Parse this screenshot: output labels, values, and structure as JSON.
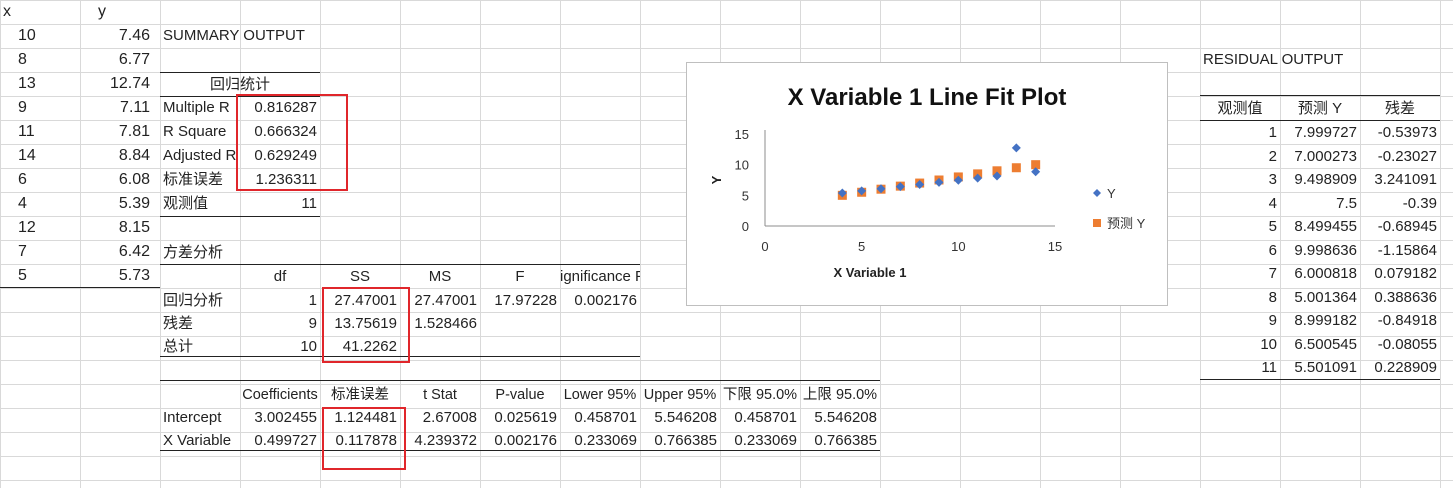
{
  "xy": {
    "x_header": "x",
    "y_header": "y",
    "rows": [
      [
        "10",
        "7.46"
      ],
      [
        "8",
        "6.77"
      ],
      [
        "13",
        "12.74"
      ],
      [
        "9",
        "7.11"
      ],
      [
        "11",
        "7.81"
      ],
      [
        "14",
        "8.84"
      ],
      [
        "6",
        "6.08"
      ],
      [
        "4",
        "5.39"
      ],
      [
        "12",
        "8.15"
      ],
      [
        "7",
        "6.42"
      ],
      [
        "5",
        "5.73"
      ]
    ]
  },
  "summary": {
    "title": "SUMMARY OUTPUT",
    "regstat_header": "回归统计",
    "stats": [
      [
        "Multiple R",
        "0.816287"
      ],
      [
        "R Square",
        "0.666324"
      ],
      [
        "Adjusted R",
        "0.629249"
      ],
      [
        "标准误差",
        "1.236311"
      ],
      [
        "观测值",
        "11"
      ]
    ]
  },
  "anova": {
    "title": "方差分析",
    "headers": [
      "df",
      "SS",
      "MS",
      "F",
      "Significance F"
    ],
    "rows": [
      [
        "回归分析",
        "1",
        "27.47001",
        "27.47001",
        "17.97228",
        "0.002176"
      ],
      [
        "残差",
        "9",
        "13.75619",
        "1.528466",
        "",
        ""
      ],
      [
        "总计",
        "10",
        "41.2262",
        "",
        "",
        ""
      ]
    ]
  },
  "coef": {
    "headers": [
      "Coefficients",
      "标准误差",
      "t Stat",
      "P-value",
      "Lower 95%",
      "Upper 95%",
      "下限 95.0%",
      "上限 95.0%"
    ],
    "rows": [
      [
        "Intercept",
        "3.002455",
        "1.124481",
        "2.67008",
        "0.025619",
        "0.458701",
        "5.546208",
        "0.458701",
        "5.546208"
      ],
      [
        "X Variable",
        "0.499727",
        "0.117878",
        "4.239372",
        "0.002176",
        "0.233069",
        "0.766385",
        "0.233069",
        "0.766385"
      ]
    ]
  },
  "residual": {
    "title": "RESIDUAL OUTPUT",
    "headers": [
      "观测值",
      "预测 Y",
      "残差"
    ],
    "rows": [
      [
        "1",
        "7.999727",
        "-0.53973"
      ],
      [
        "2",
        "7.000273",
        "-0.23027"
      ],
      [
        "3",
        "9.498909",
        "3.241091"
      ],
      [
        "4",
        "7.5",
        "-0.39"
      ],
      [
        "5",
        "8.499455",
        "-0.68945"
      ],
      [
        "6",
        "9.998636",
        "-1.15864"
      ],
      [
        "7",
        "6.000818",
        "0.079182"
      ],
      [
        "8",
        "5.001364",
        "0.388636"
      ],
      [
        "9",
        "8.999182",
        "-0.84918"
      ],
      [
        "10",
        "6.500545",
        "-0.08055"
      ],
      [
        "11",
        "5.501091",
        "0.228909"
      ]
    ]
  },
  "chart_data": {
    "type": "scatter",
    "title": "X Variable 1 Line Fit  Plot",
    "xlabel": "X Variable 1",
    "ylabel": "Y",
    "xlim": [
      0,
      15
    ],
    "ylim": [
      0,
      15
    ],
    "xticks": [
      "0",
      "5",
      "10",
      "15"
    ],
    "yticks": [
      "0",
      "5",
      "10",
      "15"
    ],
    "grid": false,
    "legend_position": "right",
    "series": [
      {
        "name": "Y",
        "marker": "diamond",
        "color": "#4472c4",
        "x": [
          10,
          8,
          13,
          9,
          11,
          14,
          6,
          4,
          12,
          7,
          5
        ],
        "y": [
          7.46,
          6.77,
          12.74,
          7.11,
          7.81,
          8.84,
          6.08,
          5.39,
          8.15,
          6.42,
          5.73
        ]
      },
      {
        "name": "预测 Y",
        "marker": "square",
        "color": "#ed7d31",
        "x": [
          10,
          8,
          13,
          9,
          11,
          14,
          6,
          4,
          12,
          7,
          5
        ],
        "y": [
          7.999727,
          7.000273,
          9.498909,
          7.5,
          8.499455,
          9.998636,
          6.000818,
          5.001364,
          8.999182,
          6.500545,
          5.501091
        ]
      }
    ]
  }
}
